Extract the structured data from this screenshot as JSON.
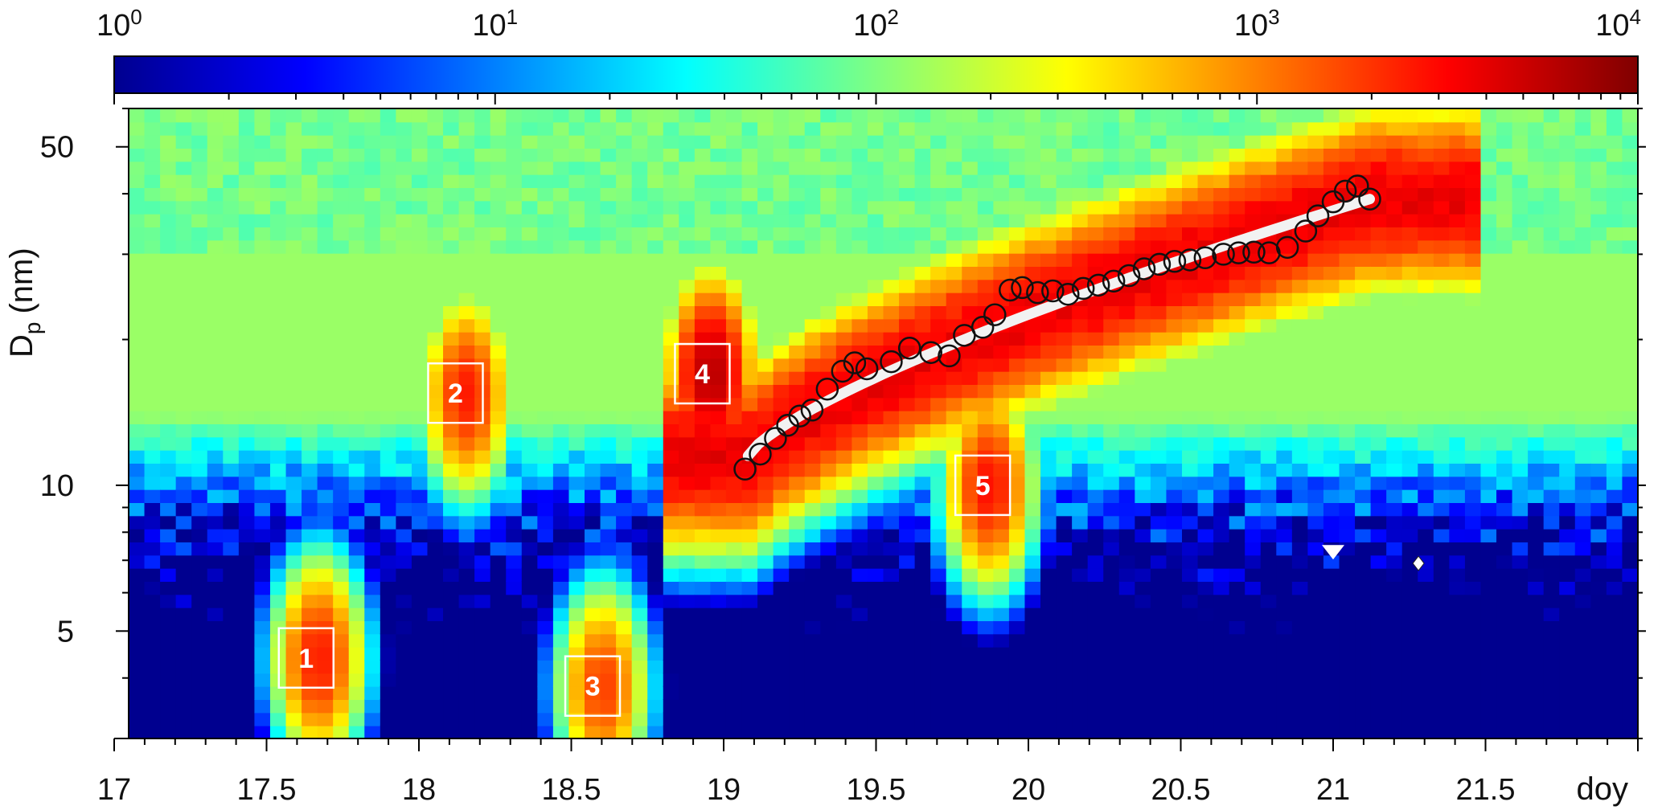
{
  "chart_data": {
    "type": "heatmap",
    "title": "",
    "xlabel": "doy",
    "ylabel": "D",
    "ylabel_subscript": "p",
    "ylabel_unit": "(nm)",
    "x_range": [
      17,
      22
    ],
    "y_range": [
      3,
      60
    ],
    "y_scale": "log",
    "x_ticks": [
      17,
      17.5,
      18,
      18.5,
      19,
      19.5,
      20,
      20.5,
      21,
      21.5
    ],
    "x_tick_labels": [
      "17",
      "17.5",
      "18",
      "18.5",
      "19",
      "19.5",
      "20",
      "20.5",
      "21",
      "21.5"
    ],
    "y_ticks": [
      5,
      10,
      50
    ],
    "y_tick_labels": [
      "5",
      "10",
      "50"
    ],
    "colorbar": {
      "scale": "log",
      "range": [
        1,
        10000
      ],
      "ticks": [
        1,
        10,
        100,
        1000,
        10000
      ],
      "tick_base": "10",
      "tick_exponents": [
        "0",
        "1",
        "2",
        "3",
        "4"
      ],
      "colors": [
        "#00008f",
        "#0000ff",
        "#0080ff",
        "#00ffff",
        "#80ff80",
        "#ffff00",
        "#ff8000",
        "#ff0000",
        "#800000"
      ]
    },
    "background_level": 200,
    "events": [
      {
        "label": "1",
        "x": 17.63,
        "y": 4.4,
        "peak": 2500
      },
      {
        "label": "2",
        "x": 18.12,
        "y": 15.5,
        "peak": 2500
      },
      {
        "label": "3",
        "x": 18.57,
        "y": 3.85,
        "peak": 1800
      },
      {
        "label": "4",
        "x": 18.93,
        "y": 17.0,
        "peak": 6000
      },
      {
        "label": "5",
        "x": 19.85,
        "y": 10.0,
        "peak": 2800
      }
    ],
    "growth_fit": {
      "x_start": 19.08,
      "y_start": 11.5,
      "x_end": 21.12,
      "y_end": 39.0
    },
    "mode_diameter_points": [
      {
        "x": 19.07,
        "y": 10.8
      },
      {
        "x": 19.12,
        "y": 11.6
      },
      {
        "x": 19.17,
        "y": 12.5
      },
      {
        "x": 19.21,
        "y": 13.3
      },
      {
        "x": 19.25,
        "y": 13.9
      },
      {
        "x": 19.29,
        "y": 14.3
      },
      {
        "x": 19.34,
        "y": 15.8
      },
      {
        "x": 19.39,
        "y": 17.2
      },
      {
        "x": 19.43,
        "y": 17.9
      },
      {
        "x": 19.47,
        "y": 17.4
      },
      {
        "x": 19.55,
        "y": 18.0
      },
      {
        "x": 19.61,
        "y": 19.2
      },
      {
        "x": 19.68,
        "y": 18.8
      },
      {
        "x": 19.74,
        "y": 18.5
      },
      {
        "x": 19.79,
        "y": 20.4
      },
      {
        "x": 19.85,
        "y": 21.2
      },
      {
        "x": 19.89,
        "y": 22.5
      },
      {
        "x": 19.94,
        "y": 25.3
      },
      {
        "x": 19.98,
        "y": 25.6
      },
      {
        "x": 20.03,
        "y": 25.0
      },
      {
        "x": 20.08,
        "y": 25.2
      },
      {
        "x": 20.13,
        "y": 24.8
      },
      {
        "x": 20.18,
        "y": 25.5
      },
      {
        "x": 20.23,
        "y": 25.9
      },
      {
        "x": 20.28,
        "y": 26.4
      },
      {
        "x": 20.33,
        "y": 27.1
      },
      {
        "x": 20.38,
        "y": 28.0
      },
      {
        "x": 20.43,
        "y": 28.6
      },
      {
        "x": 20.48,
        "y": 29.0
      },
      {
        "x": 20.53,
        "y": 29.2
      },
      {
        "x": 20.58,
        "y": 29.5
      },
      {
        "x": 20.64,
        "y": 30.0
      },
      {
        "x": 20.69,
        "y": 30.2
      },
      {
        "x": 20.74,
        "y": 30.3
      },
      {
        "x": 20.79,
        "y": 30.2
      },
      {
        "x": 20.85,
        "y": 31.0
      },
      {
        "x": 20.91,
        "y": 33.5
      },
      {
        "x": 20.95,
        "y": 36.0
      },
      {
        "x": 21.0,
        "y": 38.5
      },
      {
        "x": 21.04,
        "y": 40.5
      },
      {
        "x": 21.08,
        "y": 41.5
      },
      {
        "x": 21.12,
        "y": 39.0
      }
    ],
    "markers": [
      {
        "shape": "triangle-down",
        "x": 21.0,
        "y": 7.3
      },
      {
        "shape": "diamond",
        "x": 21.28,
        "y": 6.9
      }
    ]
  }
}
